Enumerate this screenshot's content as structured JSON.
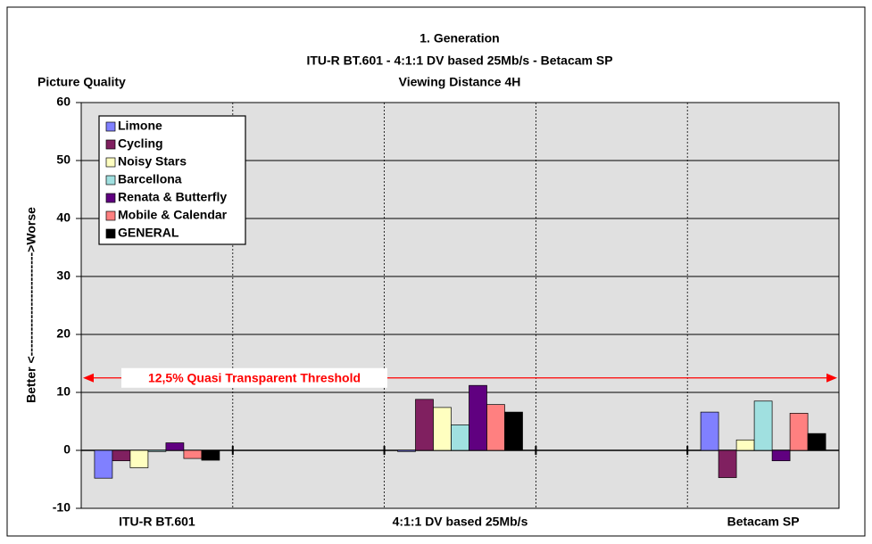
{
  "chart_data": {
    "type": "bar",
    "title": [
      "1. Generation",
      "ITU-R BT.601 - 4:1:1 DV based 25Mb/s - Betacam SP",
      "Viewing Distance 4H"
    ],
    "corner_label": "Picture Quality",
    "y_label": "Better <------------------------->Worse",
    "categories": [
      "ITU-R BT.601",
      null,
      "4:1:1 DV based 25Mb/s",
      null,
      "Betacam SP"
    ],
    "series": [
      {
        "name": "Limone",
        "color": "#8080ff",
        "values": [
          -4.8,
          null,
          -0.2,
          null,
          6.6
        ]
      },
      {
        "name": "Cycling",
        "color": "#802060",
        "values": [
          -1.8,
          null,
          8.8,
          null,
          -4.7
        ]
      },
      {
        "name": "Noisy Stars",
        "color": "#ffffc0",
        "values": [
          -3.0,
          null,
          7.4,
          null,
          1.8
        ]
      },
      {
        "name": "Barcellona",
        "color": "#a0e0e0",
        "values": [
          -0.2,
          null,
          4.4,
          null,
          8.5
        ]
      },
      {
        "name": "Renata & Butterfly",
        "color": "#600080",
        "values": [
          1.3,
          null,
          11.2,
          null,
          -1.8
        ]
      },
      {
        "name": "Mobile & Calendar",
        "color": "#ff8080",
        "values": [
          -1.4,
          null,
          7.9,
          null,
          6.4
        ]
      },
      {
        "name": "GENERAL",
        "color": "#000000",
        "values": [
          -1.7,
          null,
          6.6,
          null,
          2.9
        ]
      }
    ],
    "threshold": {
      "value": 12.5,
      "label": "12,5% Quasi Transparent Threshold",
      "color": "#ff0000"
    },
    "ylim": [
      -10,
      60
    ],
    "yticks": [
      -10,
      0,
      10,
      20,
      30,
      40,
      50,
      60
    ],
    "grid": true,
    "legend": "upper left"
  }
}
